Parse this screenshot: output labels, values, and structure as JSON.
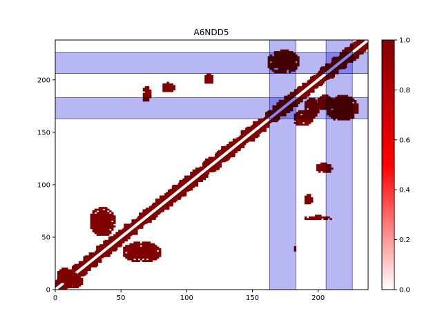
{
  "chart_data": {
    "type": "heatmap",
    "title": "A6NDD5",
    "xlabel": "",
    "ylabel": "",
    "xlim": [
      0,
      238
    ],
    "ylim": [
      0,
      238
    ],
    "x_ticks": [
      0,
      50,
      100,
      150,
      200
    ],
    "y_ticks": [
      0,
      50,
      100,
      150,
      200
    ],
    "colorbar": {
      "range": [
        0.0,
        1.0
      ],
      "ticks": [
        "0.0",
        "0.2",
        "0.4",
        "0.6",
        "0.8",
        "1.0"
      ],
      "colors": [
        "#ffffff",
        "#ff0000",
        "#800000"
      ]
    },
    "highlight_regions": [
      {
        "axis": "x",
        "range": [
          163,
          183
        ]
      },
      {
        "axis": "x",
        "range": [
          206,
          226
        ]
      },
      {
        "axis": "y",
        "range": [
          163,
          183
        ]
      },
      {
        "axis": "y",
        "range": [
          206,
          226
        ]
      }
    ],
    "highlight_color": "#aaaaf2",
    "contact_color": "#800000",
    "diagonal_band_width": 3,
    "contact_blobs": [
      {
        "x": [
          25,
          45
        ],
        "y": [
          50,
          78
        ]
      },
      {
        "x": [
          50,
          80
        ],
        "y": [
          25,
          45
        ]
      },
      {
        "x": [
          65,
          72
        ],
        "y": [
          178,
          193
        ]
      },
      {
        "x": [
          80,
          90
        ],
        "y": [
          187,
          197
        ]
      },
      {
        "x": [
          112,
          120
        ],
        "y": [
          195,
          205
        ]
      },
      {
        "x": [
          160,
          185
        ],
        "y": [
          205,
          228
        ]
      },
      {
        "x": [
          205,
          230
        ],
        "y": [
          160,
          185
        ]
      },
      {
        "x": [
          188,
          200
        ],
        "y": [
          162,
          182
        ]
      },
      {
        "x": [
          198,
          210
        ],
        "y": [
          170,
          185
        ]
      },
      {
        "x": [
          180,
          195
        ],
        "y": [
          155,
          170
        ]
      },
      {
        "x": [
          188,
          210
        ],
        "y": [
          65,
          70
        ]
      },
      {
        "x": [
          188,
          195
        ],
        "y": [
          80,
          90
        ]
      },
      {
        "x": [
          197,
          210
        ],
        "y": [
          110,
          120
        ]
      },
      {
        "x": [
          0,
          15
        ],
        "y": [
          5,
          20
        ]
      },
      {
        "x": [
          5,
          20
        ],
        "y": [
          0,
          15
        ]
      },
      {
        "x": [
          180,
          183
        ],
        "y": [
          35,
          40
        ]
      }
    ]
  }
}
